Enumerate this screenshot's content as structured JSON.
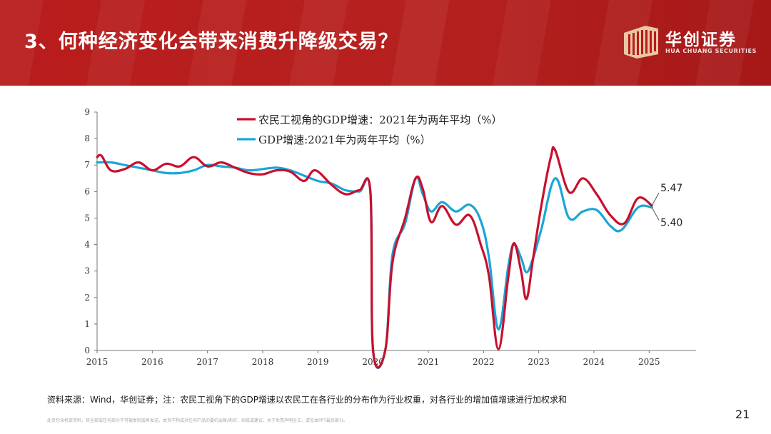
{
  "slide": {
    "title": "3、何种经济变化会带来消费升降级交易？",
    "page_number": "21",
    "source_note": "资料来源：Wind，华创证券；注：农民工视角下的GDP增速以农民工在各行业的分布作为行业权重，对各行业的增加值增速进行加权求和",
    "disclaimer": "此页包含机密资料，其全部或任何部分不可被复制或再发送。本页不构成对任何产品的要约出售/购买、招揽或建议。关于免责声明全文，请见本PPT最后部分。"
  },
  "brand": {
    "name": "华创证券",
    "sub": "HUA CHUANG SECURITIES",
    "banner_color": "#b81c1c",
    "logo_color": "#e9c7a4"
  },
  "chart_data": {
    "type": "line",
    "title": "",
    "xlabel": "",
    "ylabel": "",
    "xlim": [
      2015,
      2025.85
    ],
    "ylim": [
      0,
      9
    ],
    "x_ticks": [
      "2015",
      "2016",
      "2017",
      "2018",
      "2019",
      "2020",
      "2021",
      "2022",
      "2023",
      "2024",
      "2025"
    ],
    "y_ticks": [
      "0",
      "1",
      "2",
      "3",
      "4",
      "5",
      "6",
      "7",
      "8",
      "9"
    ],
    "legend_position": "top-center",
    "grid": false,
    "series": [
      {
        "name": "农民工视角的GDP增速：2021年为两年平均（%）",
        "color": "#c8102e",
        "points": [
          [
            2015.0,
            7.3
          ],
          [
            2015.08,
            7.35
          ],
          [
            2015.25,
            6.8
          ],
          [
            2015.5,
            6.85
          ],
          [
            2015.75,
            7.1
          ],
          [
            2016.0,
            6.8
          ],
          [
            2016.25,
            7.05
          ],
          [
            2016.5,
            6.95
          ],
          [
            2016.75,
            7.3
          ],
          [
            2017.0,
            6.95
          ],
          [
            2017.25,
            7.1
          ],
          [
            2017.5,
            6.9
          ],
          [
            2017.75,
            6.7
          ],
          [
            2018.0,
            6.65
          ],
          [
            2018.25,
            6.8
          ],
          [
            2018.5,
            6.75
          ],
          [
            2018.75,
            6.4
          ],
          [
            2018.95,
            6.8
          ],
          [
            2019.25,
            6.25
          ],
          [
            2019.5,
            5.9
          ],
          [
            2019.75,
            6.05
          ],
          [
            2019.95,
            6.0
          ],
          [
            2020.0,
            0.0
          ],
          [
            2020.22,
            0.0
          ],
          [
            2020.35,
            3.3
          ],
          [
            2020.58,
            5.0
          ],
          [
            2020.77,
            6.5
          ],
          [
            2020.9,
            6.1
          ],
          [
            2021.05,
            4.85
          ],
          [
            2021.25,
            5.45
          ],
          [
            2021.5,
            4.75
          ],
          [
            2021.75,
            5.1
          ],
          [
            2021.95,
            4.0
          ],
          [
            2022.1,
            2.8
          ],
          [
            2022.27,
            0.05
          ],
          [
            2022.45,
            2.8
          ],
          [
            2022.55,
            4.05
          ],
          [
            2022.68,
            3.0
          ],
          [
            2022.78,
            1.95
          ],
          [
            2022.9,
            3.5
          ],
          [
            2023.05,
            5.5
          ],
          [
            2023.22,
            7.3
          ],
          [
            2023.3,
            7.55
          ],
          [
            2023.55,
            5.98
          ],
          [
            2023.8,
            6.5
          ],
          [
            2024.05,
            5.9
          ],
          [
            2024.3,
            5.1
          ],
          [
            2024.55,
            4.8
          ],
          [
            2024.8,
            5.75
          ],
          [
            2025.05,
            5.47
          ]
        ]
      },
      {
        "name": "GDP增速:2021年为两年平均（%）",
        "color": "#1aa6d6",
        "points": [
          [
            2015.0,
            7.1
          ],
          [
            2015.25,
            7.1
          ],
          [
            2015.5,
            7.0
          ],
          [
            2015.75,
            6.9
          ],
          [
            2016.0,
            6.8
          ],
          [
            2016.25,
            6.7
          ],
          [
            2016.5,
            6.7
          ],
          [
            2016.75,
            6.8
          ],
          [
            2017.0,
            7.0
          ],
          [
            2017.25,
            6.95
          ],
          [
            2017.5,
            6.9
          ],
          [
            2017.75,
            6.8
          ],
          [
            2018.0,
            6.85
          ],
          [
            2018.25,
            6.9
          ],
          [
            2018.5,
            6.8
          ],
          [
            2018.75,
            6.6
          ],
          [
            2019.0,
            6.4
          ],
          [
            2019.25,
            6.3
          ],
          [
            2019.5,
            6.05
          ],
          [
            2019.75,
            6.0
          ],
          [
            2019.95,
            6.0
          ],
          [
            2020.0,
            0.0
          ],
          [
            2020.22,
            0.0
          ],
          [
            2020.35,
            3.6
          ],
          [
            2020.58,
            4.8
          ],
          [
            2020.77,
            6.5
          ],
          [
            2020.9,
            5.9
          ],
          [
            2021.05,
            5.25
          ],
          [
            2021.25,
            5.6
          ],
          [
            2021.5,
            5.25
          ],
          [
            2021.75,
            5.5
          ],
          [
            2021.95,
            4.9
          ],
          [
            2022.1,
            3.5
          ],
          [
            2022.27,
            0.8
          ],
          [
            2022.45,
            3.2
          ],
          [
            2022.55,
            4.0
          ],
          [
            2022.68,
            3.5
          ],
          [
            2022.78,
            2.95
          ],
          [
            2022.9,
            3.5
          ],
          [
            2023.05,
            4.6
          ],
          [
            2023.3,
            6.5
          ],
          [
            2023.55,
            5.0
          ],
          [
            2023.8,
            5.25
          ],
          [
            2024.05,
            5.3
          ],
          [
            2024.3,
            4.7
          ],
          [
            2024.5,
            4.55
          ],
          [
            2024.8,
            5.4
          ],
          [
            2025.05,
            5.4
          ]
        ]
      }
    ],
    "annotations": [
      {
        "text": "5.47",
        "series": 0,
        "x": 2025.05,
        "y": 5.47
      },
      {
        "text": "5.40",
        "series": 1,
        "x": 2025.05,
        "y": 5.4
      }
    ]
  }
}
